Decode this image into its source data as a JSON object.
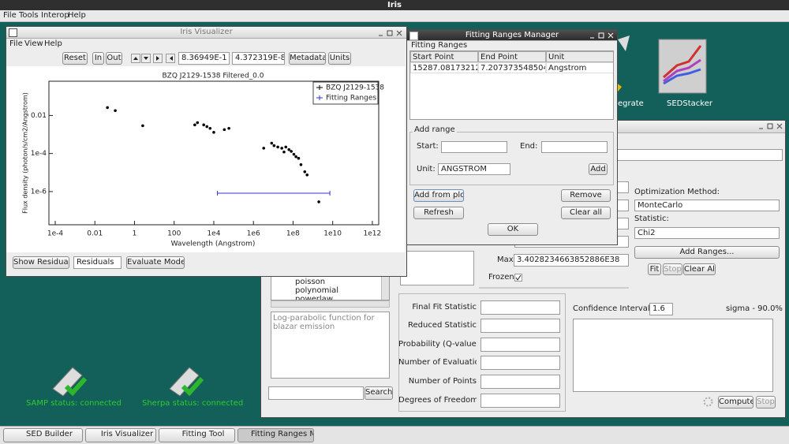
{
  "app": {
    "title": "Iris",
    "menu": [
      "File",
      "Tools",
      "Interop",
      "Help"
    ]
  },
  "desktop": {
    "icons": [
      "egrate",
      "SEDStacker"
    ],
    "status": [
      "SAMP status: connected",
      "Sherpa status: connected"
    ]
  },
  "visualizer": {
    "title": "Iris Visualizer",
    "menu": [
      "File",
      "View",
      "Help"
    ],
    "toolbar": [
      "Reset",
      "In",
      "Out"
    ],
    "fields": [
      "8.36949E-1",
      "4.372319E-8"
    ],
    "buttons": [
      "Metadata",
      "Units"
    ],
    "bottom": [
      "Show Residuals",
      "Residuals",
      "Evaluate Models"
    ]
  },
  "ranges_manager": {
    "title": "Fitting Ranges Manager",
    "group": "Fitting Ranges",
    "columns": [
      "Start Point",
      "End Point",
      "Unit"
    ],
    "rows": [
      [
        "15287.081732120...",
        "7.2073735485042...",
        "Angstrom"
      ]
    ],
    "add_group": "Add range",
    "labels": [
      "Start:",
      "End:",
      "Unit:"
    ],
    "unit": "ANGSTROM",
    "buttons": [
      "Add",
      "Add from plot",
      "Remove",
      "Refresh",
      "Clear all",
      "OK"
    ]
  },
  "fitting_tool": {
    "optimization_label": "Optimization Method:",
    "optimization": "MonteCarlo",
    "statistic_label": "Statistic:",
    "statistic": "Chi2",
    "add_ranges": "Add Ranges...",
    "fit_buttons": [
      "Fit",
      "Stop",
      "Clear All"
    ],
    "max_label": "Max",
    "max": "3.4028234663852886E38",
    "frozen": "Frozen",
    "models": [
      "poisson",
      "polynomial",
      "powerlaw"
    ],
    "description": "Log-parabolic function for blazar emission",
    "search": "Search",
    "stats": [
      "Final Fit Statistic",
      "Reduced Statistic",
      "Probability (Q-value)",
      "Number of Evaluations",
      "Number of Points",
      "Degrees of Freedom"
    ],
    "confidence_label": "Confidence Interval:",
    "confidence": "1.6",
    "sigma": "sigma - 90.0%",
    "compute": "Compute",
    "stop": "Stop"
  },
  "taskbar": [
    "SED Builder",
    "Iris Visualizer",
    "Fitting Tool",
    "Fitting Ranges M..."
  ],
  "chart_data": {
    "type": "scatter",
    "title": "BZQ J2129-1538 Filtered_0.0",
    "x_label": "Wavelength (Angstrom)",
    "y_label": "Flux density (photon/s/cm2/Angstrom)",
    "xscale": "log",
    "yscale": "log",
    "xlim": [
      4.8e-05,
      2100000000000.0
    ],
    "ylim": [
      1.8e-08,
      0.63
    ],
    "xticks": [
      {
        "value": 0.0001,
        "label": "1e-4"
      },
      0.01,
      1,
      100,
      {
        "value": 10000,
        "label": "1e4"
      },
      {
        "value": 1000000,
        "label": "1e6"
      },
      {
        "value": 100000000,
        "label": "1e8"
      },
      {
        "value": 10000000000,
        "label": "1e10"
      },
      {
        "value": 1000000000000,
        "label": "1e12"
      }
    ],
    "yticks": [
      {
        "value": 1e-06,
        "label": "1e-6"
      },
      {
        "value": 0.0001,
        "label": "1e-4"
      },
      0.01
    ],
    "series": [
      {
        "name": "BZQ J2129-1538",
        "color": "#000000",
        "x": [
          0.043,
          0.107,
          2.6,
          1100,
          1500,
          3100,
          4500,
          6500,
          10000,
          34000,
          58000,
          3300000,
          8300000,
          11000000,
          17000000,
          27000000,
          43000000,
          35000000,
          62000000,
          81000000,
          110000000,
          140000000,
          190000000,
          250000000,
          390000000,
          510000000,
          2000000000
        ],
        "values": [
          0.026,
          0.018,
          0.0029,
          0.0032,
          0.0042,
          0.0032,
          0.0026,
          0.0021,
          0.0013,
          0.0018,
          0.0021,
          0.00019,
          0.00035,
          0.00026,
          0.00022,
          0.00019,
          0.00022,
          0.00012,
          0.00016,
          0.00013,
          9.1e-05,
          6.8e-05,
          5.6e-05,
          2.6e-05,
          1.1e-05,
          7.5e-06,
          2.9e-07
        ]
      },
      {
        "name": "Fitting Ranges",
        "color": "#3030d8",
        "x": [
          15287.08173212,
          7207373548.5042
        ]
      }
    ]
  }
}
